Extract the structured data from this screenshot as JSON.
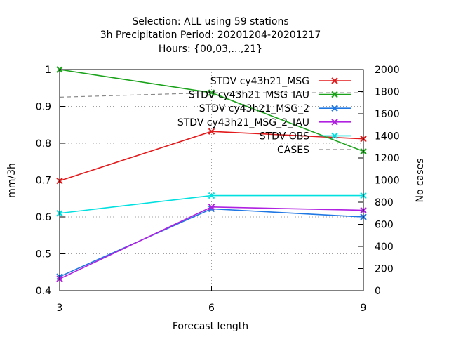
{
  "chart_data": {
    "type": "line",
    "title_lines": [
      "Selection: ALL using    59 stations",
      "3h Precipitation   Period: 20201204-20201217",
      "Hours: {00,03,...,21}"
    ],
    "xlabel": "Forecast length",
    "ylabel": "mm/3h",
    "y2label": "No cases",
    "x": [
      3,
      6,
      9
    ],
    "xlim": [
      3,
      9
    ],
    "ylim": [
      0.4,
      1.0
    ],
    "y2lim": [
      0,
      2000
    ],
    "x_ticks": [
      "3",
      "6",
      "9"
    ],
    "y_ticks": [
      "0.4",
      "0.5",
      "0.6",
      "0.7",
      "0.8",
      "0.9",
      "1"
    ],
    "y2_ticks": [
      "0",
      "200",
      "400",
      "600",
      "800",
      "1000",
      "1200",
      "1400",
      "1600",
      "1800",
      "2000"
    ],
    "grid": true,
    "legend_position": "top-right",
    "series": [
      {
        "name": "STDV cy43h21_MSG",
        "axis": "y",
        "color": "#e31a1c",
        "marker": "x",
        "values": [
          0.698,
          0.832,
          0.812
        ]
      },
      {
        "name": "STDV cy43h21_MSG_IAU",
        "axis": "y",
        "color": "#1aa31a",
        "marker": "x",
        "values": [
          1.0,
          0.937,
          0.778
        ]
      },
      {
        "name": "STDV cy43h21_MSG_2",
        "axis": "y",
        "color": "#1f77e4",
        "marker": "x",
        "values": [
          0.438,
          0.622,
          0.6
        ]
      },
      {
        "name": "STDV cy43h21_MSG_2_IAU",
        "axis": "y",
        "color": "#b020e0",
        "marker": "x",
        "values": [
          0.432,
          0.627,
          0.618
        ]
      },
      {
        "name": "STDV OBS",
        "axis": "y",
        "color": "#00e0e0",
        "marker": "x",
        "values": [
          0.61,
          0.658,
          0.658
        ]
      },
      {
        "name": "CASES",
        "axis": "y2",
        "color": "#888888",
        "dashed": true,
        "values": [
          1750,
          1790,
          1790
        ]
      }
    ]
  }
}
